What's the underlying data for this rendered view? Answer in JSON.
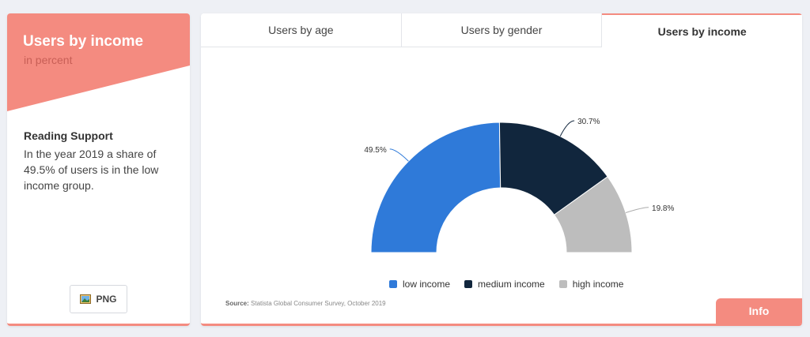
{
  "sidebar": {
    "title": "Users by income",
    "subtitle": "in percent",
    "support_heading": "Reading Support",
    "support_text": "In the year 2019 a share of 49.5% of users is in the low income group.",
    "png_label": "PNG",
    "accent_color": "#f48b80"
  },
  "tabs": [
    {
      "label": "Users by age",
      "active": false
    },
    {
      "label": "Users by gender",
      "active": false
    },
    {
      "label": "Users by income",
      "active": true
    }
  ],
  "source": {
    "prefix": "Source:",
    "text": "Statista Global Consumer Survey, October 2019"
  },
  "info_label": "Info",
  "icons": {
    "png": "image-icon"
  },
  "chart_data": {
    "type": "pie",
    "variant": "half-donut",
    "title": "",
    "labels": [
      "low income",
      "medium income",
      "high income"
    ],
    "values": [
      49.5,
      30.7,
      19.8
    ],
    "value_labels": [
      "49.5%",
      "30.7%",
      "19.8%"
    ],
    "colors": [
      "#2f7ad9",
      "#11263d",
      "#bdbdbd"
    ],
    "legend_position": "bottom"
  }
}
